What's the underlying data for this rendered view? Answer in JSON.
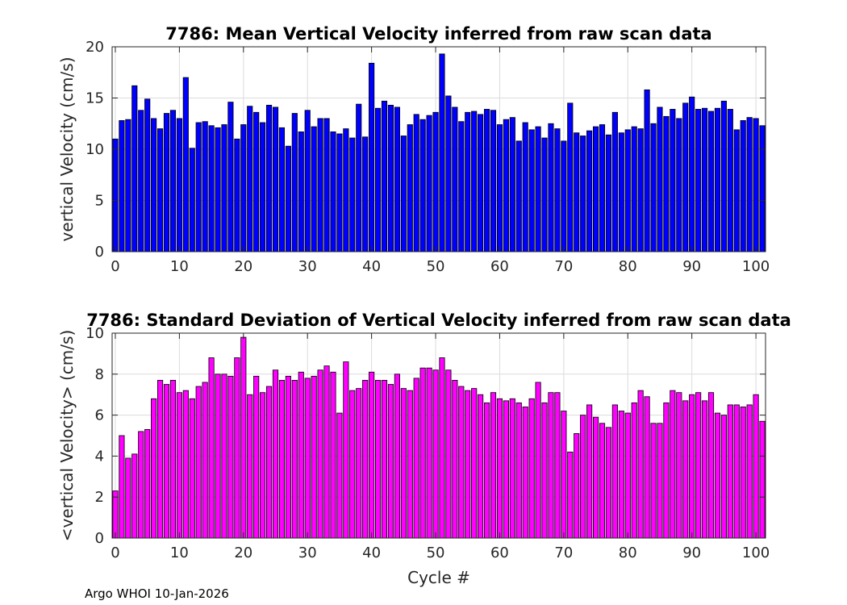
{
  "footer": {
    "text": "Argo WHOI 10-Jan-2026"
  },
  "chart_data": [
    {
      "type": "bar",
      "title": "7786: Mean Vertical Velocity inferred from raw scan data",
      "xlabel": "",
      "ylabel": "vertical Velocity (cm/s)",
      "xlim": [
        -0.5,
        101.5
      ],
      "ylim": [
        0,
        20
      ],
      "xticks": [
        0,
        10,
        20,
        30,
        40,
        50,
        60,
        70,
        80,
        90,
        100
      ],
      "yticks": [
        0,
        5,
        10,
        15,
        20
      ],
      "grid": true,
      "color": "#0000ff",
      "x": [
        0,
        1,
        2,
        3,
        4,
        5,
        6,
        7,
        8,
        9,
        10,
        11,
        12,
        13,
        14,
        15,
        16,
        17,
        18,
        19,
        20,
        21,
        22,
        23,
        24,
        25,
        26,
        27,
        28,
        29,
        30,
        31,
        32,
        33,
        34,
        35,
        36,
        37,
        38,
        39,
        40,
        41,
        42,
        43,
        44,
        45,
        46,
        47,
        48,
        49,
        50,
        51,
        52,
        53,
        54,
        55,
        56,
        57,
        58,
        59,
        60,
        61,
        62,
        63,
        64,
        65,
        66,
        67,
        68,
        69,
        70,
        71,
        72,
        73,
        74,
        75,
        76,
        77,
        78,
        79,
        80,
        81,
        82,
        83,
        84,
        85,
        86,
        87,
        88,
        89,
        90,
        91,
        92,
        93,
        94,
        95,
        96,
        97,
        98,
        99,
        100,
        101
      ],
      "values": [
        11.0,
        12.8,
        12.9,
        16.2,
        13.8,
        14.9,
        13.0,
        12.0,
        13.5,
        13.8,
        13.0,
        17.0,
        10.1,
        12.6,
        12.7,
        12.3,
        12.1,
        12.4,
        14.6,
        11.0,
        12.4,
        14.2,
        13.6,
        12.6,
        14.3,
        14.1,
        12.1,
        10.3,
        13.5,
        11.7,
        13.8,
        12.2,
        13.0,
        13.0,
        11.7,
        11.5,
        12.0,
        11.1,
        14.4,
        11.2,
        18.4,
        14.0,
        14.7,
        14.3,
        14.1,
        11.3,
        12.4,
        13.4,
        12.9,
        13.3,
        13.6,
        19.3,
        15.2,
        14.1,
        12.7,
        13.6,
        13.7,
        13.4,
        13.9,
        13.8,
        12.4,
        12.9,
        13.1,
        10.8,
        12.6,
        11.9,
        12.2,
        11.1,
        12.5,
        12.0,
        10.8,
        14.5,
        11.6,
        11.3,
        11.8,
        12.2,
        12.4,
        11.4,
        13.6,
        11.6,
        11.9,
        12.2,
        12.0,
        15.8,
        12.5,
        14.1,
        13.2,
        13.9,
        13.0,
        14.5,
        15.1,
        13.9,
        14.0,
        13.7,
        14.0,
        14.7,
        13.9,
        11.9,
        12.8,
        13.1,
        13.0,
        12.3
      ]
    },
    {
      "type": "bar",
      "title": "7786: Standard Deviation of Vertical Velocity inferred from raw scan data",
      "xlabel": "Cycle #",
      "ylabel": "<vertical Velocity> (cm/s)",
      "xlim": [
        -0.5,
        101.5
      ],
      "ylim": [
        0,
        10
      ],
      "xticks": [
        0,
        10,
        20,
        30,
        40,
        50,
        60,
        70,
        80,
        90,
        100
      ],
      "yticks": [
        0,
        2,
        4,
        6,
        8,
        10
      ],
      "grid": true,
      "color": "#ff00ff",
      "x": [
        0,
        1,
        2,
        3,
        4,
        5,
        6,
        7,
        8,
        9,
        10,
        11,
        12,
        13,
        14,
        15,
        16,
        17,
        18,
        19,
        20,
        21,
        22,
        23,
        24,
        25,
        26,
        27,
        28,
        29,
        30,
        31,
        32,
        33,
        34,
        35,
        36,
        37,
        38,
        39,
        40,
        41,
        42,
        43,
        44,
        45,
        46,
        47,
        48,
        49,
        50,
        51,
        52,
        53,
        54,
        55,
        56,
        57,
        58,
        59,
        60,
        61,
        62,
        63,
        64,
        65,
        66,
        67,
        68,
        69,
        70,
        71,
        72,
        73,
        74,
        75,
        76,
        77,
        78,
        79,
        80,
        81,
        82,
        83,
        84,
        85,
        86,
        87,
        88,
        89,
        90,
        91,
        92,
        93,
        94,
        95,
        96,
        97,
        98,
        99,
        100,
        101
      ],
      "values": [
        2.3,
        5.0,
        3.9,
        4.1,
        5.2,
        5.3,
        6.8,
        7.7,
        7.5,
        7.7,
        7.1,
        7.2,
        6.8,
        7.4,
        7.6,
        8.8,
        8.0,
        8.0,
        7.9,
        8.8,
        9.8,
        7.0,
        7.9,
        7.1,
        7.4,
        8.2,
        7.7,
        7.9,
        7.7,
        8.1,
        7.8,
        7.9,
        8.2,
        8.4,
        8.1,
        6.1,
        8.6,
        7.2,
        7.3,
        7.7,
        8.1,
        7.7,
        7.7,
        7.5,
        8.0,
        7.3,
        7.2,
        7.8,
        8.3,
        8.3,
        8.2,
        8.8,
        8.2,
        7.7,
        7.4,
        7.2,
        7.3,
        7.0,
        6.6,
        7.1,
        6.8,
        6.7,
        6.8,
        6.6,
        6.4,
        6.8,
        7.6,
        6.6,
        7.1,
        7.1,
        6.2,
        4.2,
        5.1,
        6.0,
        6.5,
        5.9,
        5.6,
        5.4,
        6.5,
        6.2,
        6.1,
        6.6,
        7.2,
        6.9,
        5.6,
        5.6,
        6.6,
        7.2,
        7.1,
        6.7,
        7.0,
        7.1,
        6.7,
        7.1,
        6.1,
        6.0,
        6.5,
        6.5,
        6.4,
        6.5,
        7.0,
        5.7
      ]
    }
  ]
}
